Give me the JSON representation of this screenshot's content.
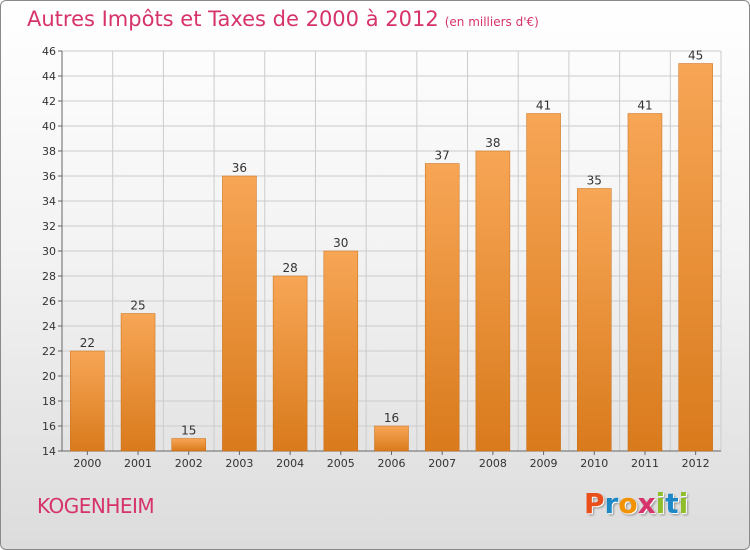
{
  "title": "Autres Impôts et Taxes de 2000 à 2012",
  "title_unit": "(en milliers d'€)",
  "commune": "KOGENHEIM",
  "logo": {
    "letters": [
      "P",
      "r",
      "o",
      "x",
      "i",
      "t",
      "i"
    ],
    "colors": [
      "#e94e1b",
      "#1e88c7",
      "#f39200",
      "#d6336c",
      "#8fbe2b",
      "#1e88c7",
      "#8fbe2b"
    ]
  },
  "colors": {
    "bar_top": "#f7a656",
    "bar_bottom": "#d97a1c",
    "title": "#d6336c",
    "grid": "#cccccc"
  },
  "chart_data": {
    "type": "bar",
    "title": "Autres Impôts et Taxes de 2000 à 2012",
    "xlabel": "",
    "ylabel": "",
    "categories": [
      "2000",
      "2001",
      "2002",
      "2003",
      "2004",
      "2005",
      "2006",
      "2007",
      "2008",
      "2009",
      "2010",
      "2011",
      "2012"
    ],
    "values": [
      22,
      25,
      15,
      36,
      28,
      30,
      16,
      37,
      38,
      41,
      35,
      41,
      45
    ],
    "ylim": [
      14,
      46
    ],
    "yticks": [
      14,
      16,
      18,
      20,
      22,
      24,
      26,
      28,
      30,
      32,
      34,
      36,
      38,
      40,
      42,
      44,
      46
    ],
    "grid": true,
    "legend": "none"
  }
}
